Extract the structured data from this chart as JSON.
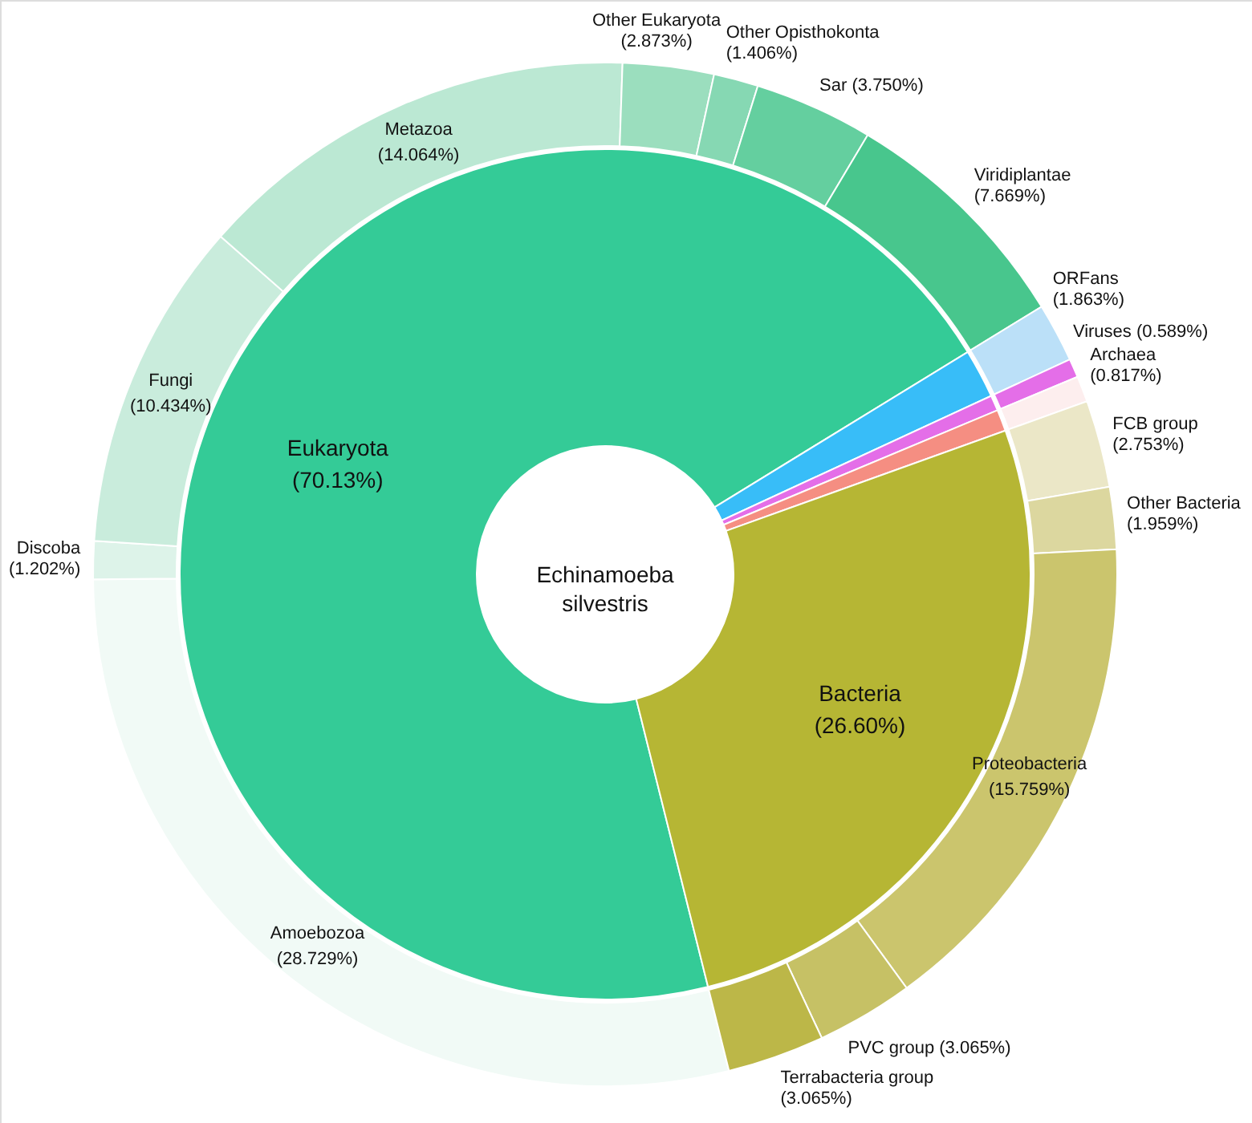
{
  "chart_data": {
    "type": "donut",
    "title": "Echinamoeba silvestris",
    "series": [
      {
        "values": [
          70.13,
          1.863,
          0.589,
          0.817,
          26.6
        ],
        "colors": [
          "#34cb97",
          "#38bdf8",
          "#e46ee8",
          "#f58e82",
          "#b6b634"
        ],
        "value_labels": [
          "Eukaryota (70.13%)",
          null,
          null,
          null,
          "Bacteria (26.60%)"
        ]
      },
      {
        "values": [
          28.729,
          1.202,
          10.434,
          14.064,
          2.873,
          1.406,
          3.75,
          7.669,
          1.863,
          0.589,
          0.817,
          2.753,
          1.959,
          15.759,
          3.065,
          3.065
        ],
        "colors": [
          "#f1faf6",
          "#ddf3e9",
          "#c9ecdc",
          "#bbe8d3",
          "#9bdebe",
          "#86d8b3",
          "#64cf9f",
          "#48c68d",
          "#bbe0f8",
          "#e46ee8",
          "#fdeeee",
          "#ebe7c7",
          "#dcd79f",
          "#cbc56d",
          "#c6c165",
          "#bcb748"
        ],
        "value_labels": [
          "Amoebozoa (28.729%)",
          "Discoba (1.202%)",
          "Fungi (10.434%)",
          "Metazoa (14.064%)",
          "Other Eukaryota (2.873%)",
          "Other Opisthokonta (1.406%)",
          "Sar (3.750%)",
          "Viridiplantae (7.669%)",
          "ORFans (1.863%)",
          "Viruses (0.589%)",
          "Archaea (0.817%)",
          "FCB group (2.753%)",
          "Other Bacteria (1.959%)",
          "Proteobacteria (15.759%)",
          "PVC group (3.065%)",
          "Terrabacteria group (3.065%)"
        ]
      }
    ]
  }
}
